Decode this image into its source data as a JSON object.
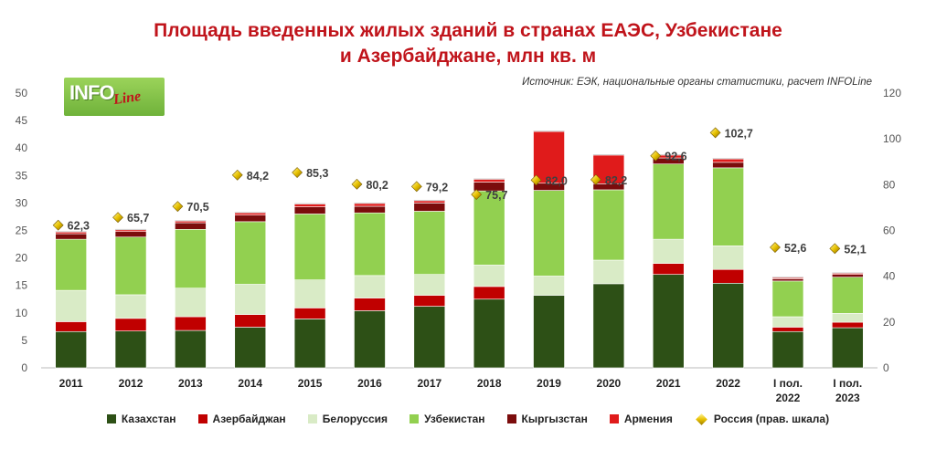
{
  "title_line1": "Площадь введенных жилых зданий в странах ЕАЭС, Узбекистане",
  "title_line2": "и Азербайджане, млн кв. м",
  "logo_main": "INFO",
  "logo_sub": "Line",
  "source": "Источник: ЕЭК, национальные органы статистики, расчет INFOLine",
  "colors": {
    "Казахстан": "#2d5016",
    "Азербайджан": "#c00000",
    "Белоруссия": "#d9ebc6",
    "Узбекистан": "#92d050",
    "Кыргызстан": "#7b0c0c",
    "Армения": "#e01b1b",
    "Россия": "#f0c800",
    "label": "#404040",
    "axis": "#555555"
  },
  "chart_data": {
    "type": "bar",
    "stacked": true,
    "categories": [
      "2011",
      "2012",
      "2013",
      "2014",
      "2015",
      "2016",
      "2017",
      "2018",
      "2019",
      "2020",
      "2021",
      "2022",
      "I пол.\n2022",
      "I пол.\n2023"
    ],
    "series": [
      {
        "name": "Казахстан",
        "values": [
          6.6,
          6.7,
          6.8,
          7.4,
          8.9,
          10.4,
          11.2,
          12.5,
          13.2,
          15.3,
          17.0,
          15.4,
          6.6,
          7.3
        ]
      },
      {
        "name": "Азербайджан",
        "values": [
          1.8,
          2.3,
          2.5,
          2.3,
          2.0,
          2.3,
          2.0,
          2.3,
          0.0,
          0.0,
          2.0,
          2.5,
          0.8,
          1.0
        ]
      },
      {
        "name": "Белоруссия",
        "values": [
          5.7,
          4.3,
          5.2,
          5.5,
          5.1,
          4.1,
          3.8,
          3.9,
          3.5,
          4.3,
          4.4,
          4.3,
          1.9,
          1.6
        ]
      },
      {
        "name": "Узбекистан",
        "values": [
          9.3,
          10.5,
          10.7,
          11.4,
          12.0,
          11.4,
          11.5,
          13.5,
          15.6,
          12.8,
          13.7,
          14.2,
          6.5,
          6.6
        ]
      },
      {
        "name": "Кыргызстан",
        "values": [
          1.0,
          1.0,
          1.2,
          1.2,
          1.3,
          1.2,
          1.5,
          1.6,
          1.3,
          1.1,
          1.1,
          1.0,
          0.4,
          0.5
        ]
      },
      {
        "name": "Армения",
        "values": [
          0.3,
          0.3,
          0.3,
          0.4,
          0.5,
          0.5,
          0.4,
          0.5,
          9.4,
          5.2,
          0.5,
          0.6,
          0.2,
          0.2
        ]
      }
    ],
    "line_series": {
      "name": "Россия (прав. шкала)",
      "axis": "right",
      "values": [
        62.3,
        65.7,
        70.5,
        84.2,
        85.3,
        80.2,
        79.2,
        75.7,
        82.0,
        82.2,
        92.6,
        102.7,
        52.6,
        52.1
      ]
    },
    "line_labels": [
      "62,3",
      "65,7",
      "70,5",
      "84,2",
      "85,3",
      "80,2",
      "79,2",
      "75,7",
      "82,0",
      "82,2",
      "92,6",
      "102,7",
      "52,6",
      "52,1"
    ],
    "ylim": [
      0,
      50
    ],
    "y_ticks": [
      0,
      5,
      10,
      15,
      20,
      25,
      30,
      35,
      40,
      45,
      50
    ],
    "y2lim": [
      0,
      120
    ],
    "y2_ticks": [
      0,
      20,
      40,
      60,
      80,
      100,
      120
    ],
    "legend_position": "bottom"
  },
  "legend": [
    {
      "label": "Казахстан",
      "color": "#2d5016",
      "shape": "square"
    },
    {
      "label": "Азербайджан",
      "color": "#c00000",
      "shape": "square"
    },
    {
      "label": "Белоруссия",
      "color": "#d9ebc6",
      "shape": "square"
    },
    {
      "label": "Узбекистан",
      "color": "#92d050",
      "shape": "square"
    },
    {
      "label": "Кыргызстан",
      "color": "#7b0c0c",
      "shape": "square"
    },
    {
      "label": "Армения",
      "color": "#e01b1b",
      "shape": "square"
    },
    {
      "label": "Россия (прав. шкала)",
      "color": "#f0c800",
      "shape": "diamond"
    }
  ]
}
